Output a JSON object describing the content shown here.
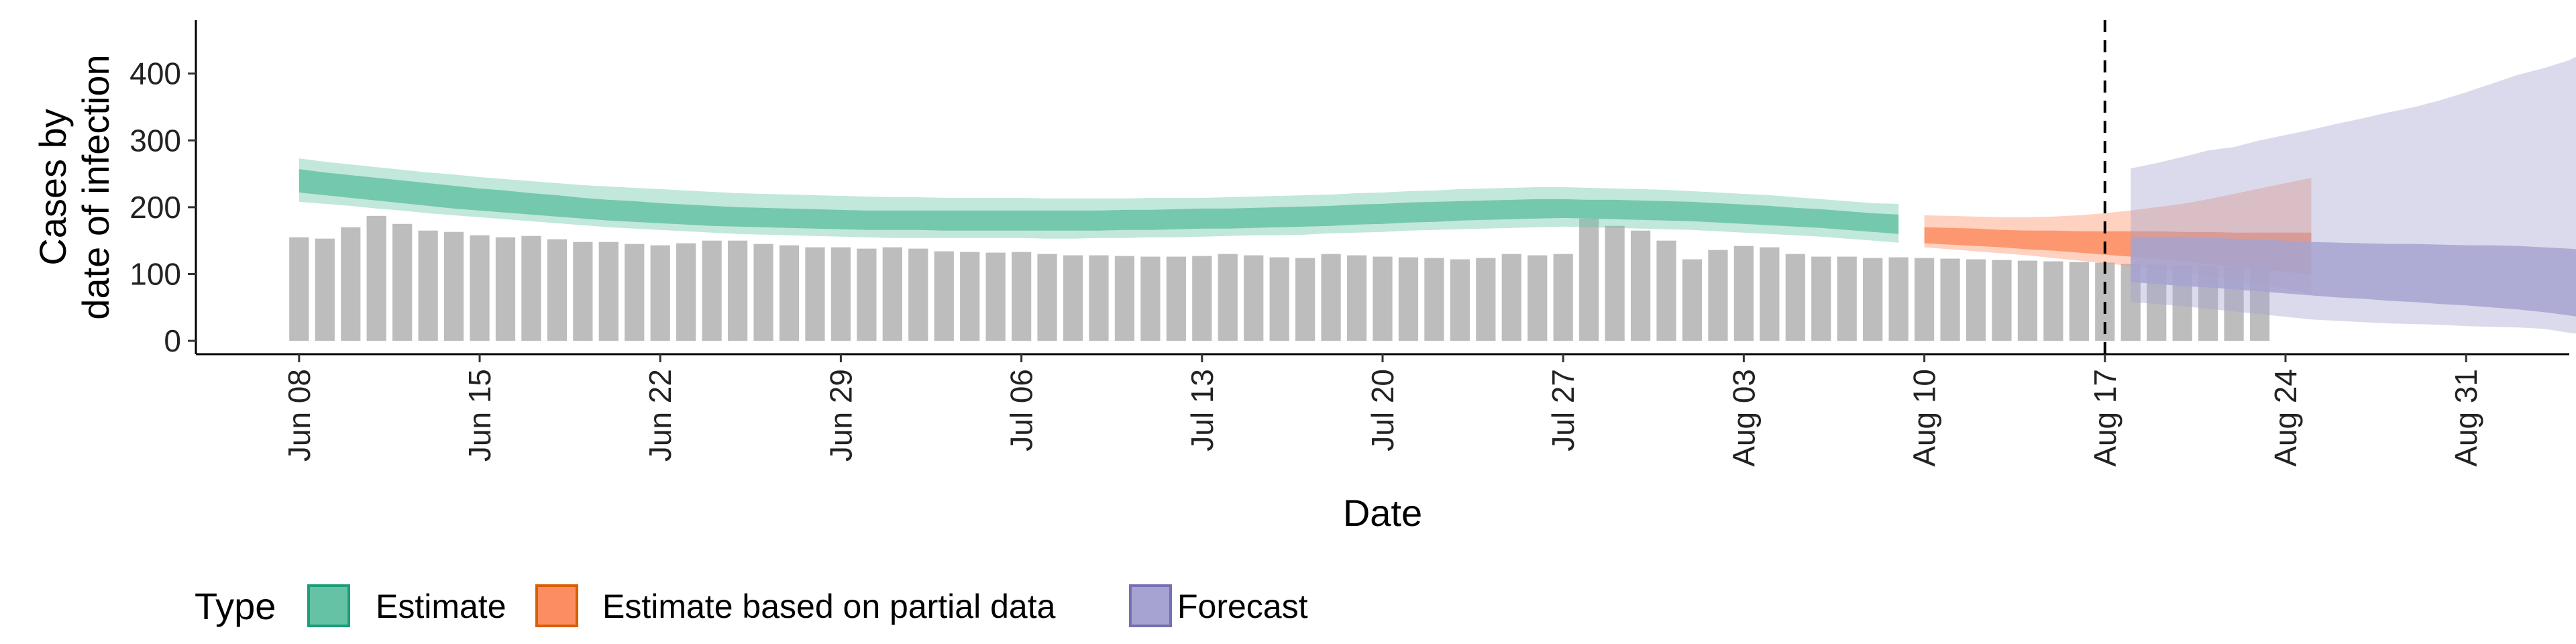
{
  "chart_data": {
    "type": "bar",
    "xlabel": "Date",
    "ylabel_lines": [
      "Cases by",
      "date of infection"
    ],
    "yticks": [
      0,
      100,
      200,
      300,
      400
    ],
    "ylim": [
      -20,
      480
    ],
    "xlim": [
      "2020-06-04",
      "2020-09-04"
    ],
    "xticks": [
      {
        "date": "2020-06-08",
        "label": "Jun 08"
      },
      {
        "date": "2020-06-15",
        "label": "Jun 15"
      },
      {
        "date": "2020-06-22",
        "label": "Jun 22"
      },
      {
        "date": "2020-06-29",
        "label": "Jun 29"
      },
      {
        "date": "2020-07-06",
        "label": "Jul 06"
      },
      {
        "date": "2020-07-13",
        "label": "Jul 13"
      },
      {
        "date": "2020-07-20",
        "label": "Jul 20"
      },
      {
        "date": "2020-07-27",
        "label": "Jul 27"
      },
      {
        "date": "2020-08-03",
        "label": "Aug 03"
      },
      {
        "date": "2020-08-10",
        "label": "Aug 10"
      },
      {
        "date": "2020-08-17",
        "label": "Aug 17"
      },
      {
        "date": "2020-08-24",
        "label": "Aug 24"
      },
      {
        "date": "2020-08-31",
        "label": "Aug 31"
      }
    ],
    "vline_date": "2020-08-17",
    "bars": {
      "start_date": "2020-06-08",
      "color": "#bdbdbd",
      "values": [
        155,
        153,
        170,
        187,
        175,
        165,
        163,
        158,
        155,
        157,
        152,
        148,
        148,
        145,
        143,
        146,
        150,
        150,
        145,
        143,
        140,
        140,
        138,
        140,
        138,
        134,
        133,
        132,
        133,
        130,
        128,
        128,
        127,
        126,
        126,
        127,
        130,
        128,
        125,
        124,
        130,
        128,
        126,
        125,
        124,
        122,
        124,
        130,
        128,
        130,
        183,
        172,
        165,
        150,
        122,
        136,
        142,
        140,
        130,
        126,
        126,
        124,
        125,
        124,
        123,
        122,
        121,
        120,
        119,
        118,
        117,
        115,
        114,
        113,
        112,
        111,
        115
      ]
    },
    "series": [
      {
        "name": "Estimate",
        "color": "#1b9e77",
        "fill": "#66c2a5",
        "start_date": "2020-06-08",
        "outer_upper": [
          273,
          268,
          264,
          260,
          256,
          252,
          249,
          245,
          242,
          239,
          236,
          233,
          231,
          229,
          227,
          225,
          223,
          221,
          220,
          219,
          218,
          217,
          216,
          215,
          215,
          214,
          214,
          214,
          214,
          213,
          213,
          213,
          213,
          214,
          214,
          214,
          215,
          216,
          217,
          218,
          219,
          221,
          222,
          224,
          225,
          227,
          228,
          229,
          230,
          230,
          229,
          228,
          227,
          226,
          224,
          222,
          220,
          218,
          215,
          212,
          209,
          206,
          205
        ],
        "inner_upper": [
          257,
          252,
          248,
          244,
          240,
          236,
          232,
          228,
          225,
          221,
          218,
          214,
          211,
          209,
          206,
          204,
          202,
          200,
          199,
          198,
          197,
          196,
          195,
          195,
          195,
          195,
          195,
          195,
          195,
          195,
          195,
          195,
          196,
          196,
          197,
          198,
          198,
          199,
          200,
          201,
          202,
          204,
          205,
          207,
          208,
          209,
          210,
          211,
          212,
          212,
          211,
          211,
          210,
          209,
          208,
          206,
          204,
          202,
          199,
          197,
          194,
          191,
          189
        ],
        "inner_lower": [
          222,
          218,
          214,
          210,
          206,
          202,
          198,
          195,
          192,
          189,
          186,
          183,
          180,
          178,
          176,
          174,
          172,
          171,
          170,
          169,
          168,
          167,
          166,
          166,
          166,
          165,
          165,
          165,
          165,
          165,
          165,
          165,
          166,
          166,
          167,
          168,
          168,
          169,
          170,
          171,
          172,
          174,
          175,
          177,
          178,
          180,
          181,
          182,
          183,
          184,
          183,
          182,
          181,
          180,
          179,
          177,
          175,
          173,
          171,
          169,
          166,
          163,
          160
        ],
        "outer_lower": [
          208,
          205,
          202,
          198,
          195,
          191,
          188,
          185,
          182,
          179,
          176,
          173,
          170,
          168,
          166,
          164,
          162,
          160,
          159,
          158,
          157,
          156,
          155,
          154,
          154,
          154,
          154,
          154,
          154,
          153,
          153,
          154,
          154,
          155,
          155,
          156,
          157,
          158,
          158,
          159,
          161,
          162,
          163,
          165,
          166,
          167,
          168,
          169,
          170,
          171,
          170,
          169,
          168,
          167,
          166,
          164,
          162,
          160,
          158,
          156,
          153,
          150,
          147
        ]
      },
      {
        "name": "Estimate based on partial data",
        "color": "#d95f02",
        "fill": "#fc8d62",
        "start_date": "2020-08-10",
        "outer_upper": [
          188,
          187,
          186,
          185,
          185,
          186,
          188,
          191,
          195,
          200,
          205,
          212,
          220,
          228,
          236,
          244
        ],
        "inner_upper": [
          170,
          169,
          168,
          166,
          165,
          165,
          164,
          164,
          164,
          164,
          163,
          163,
          162,
          162,
          162,
          162
        ],
        "inner_lower": [
          146,
          144,
          142,
          140,
          137,
          135,
          132,
          129,
          126,
          123,
          119,
          115,
          111,
          107,
          103,
          99
        ],
        "outer_lower": [
          140,
          137,
          134,
          131,
          128,
          124,
          120,
          116,
          112,
          107,
          102,
          97,
          92,
          85,
          78,
          70
        ]
      },
      {
        "name": "Forecast",
        "color": "#7570b3",
        "fill": "#a6a3d0",
        "start_date": "2020-08-18",
        "outer_upper": [
          258,
          266,
          275,
          285,
          290,
          300,
          308,
          316,
          325,
          333,
          342,
          350,
          360,
          372,
          385,
          398,
          408,
          420,
          440,
          457
        ],
        "inner_upper": [
          155,
          155,
          156,
          154,
          153,
          151,
          150,
          148,
          147,
          146,
          145,
          145,
          144,
          143,
          143,
          142,
          140,
          138,
          135,
          130
        ],
        "inner_lower": [
          88,
          85,
          82,
          80,
          77,
          74,
          71,
          68,
          65,
          63,
          60,
          58,
          55,
          53,
          50,
          47,
          43,
          38,
          32,
          25
        ],
        "outer_lower": [
          58,
          55,
          52,
          48,
          44,
          40,
          36,
          32,
          30,
          28,
          26,
          25,
          24,
          22,
          21,
          20,
          18,
          12,
          8,
          5
        ]
      }
    ],
    "legend": {
      "title": "Type",
      "position": "bottom",
      "items": [
        {
          "label": "Estimate",
          "fill": "#66c2a5",
          "stroke": "#1b9e77"
        },
        {
          "label": "Estimate based on partial data",
          "fill": "#fc8d62",
          "stroke": "#d95f02"
        },
        {
          "label": "Forecast",
          "fill": "#a6a3d0",
          "stroke": "#7570b3"
        }
      ]
    }
  }
}
